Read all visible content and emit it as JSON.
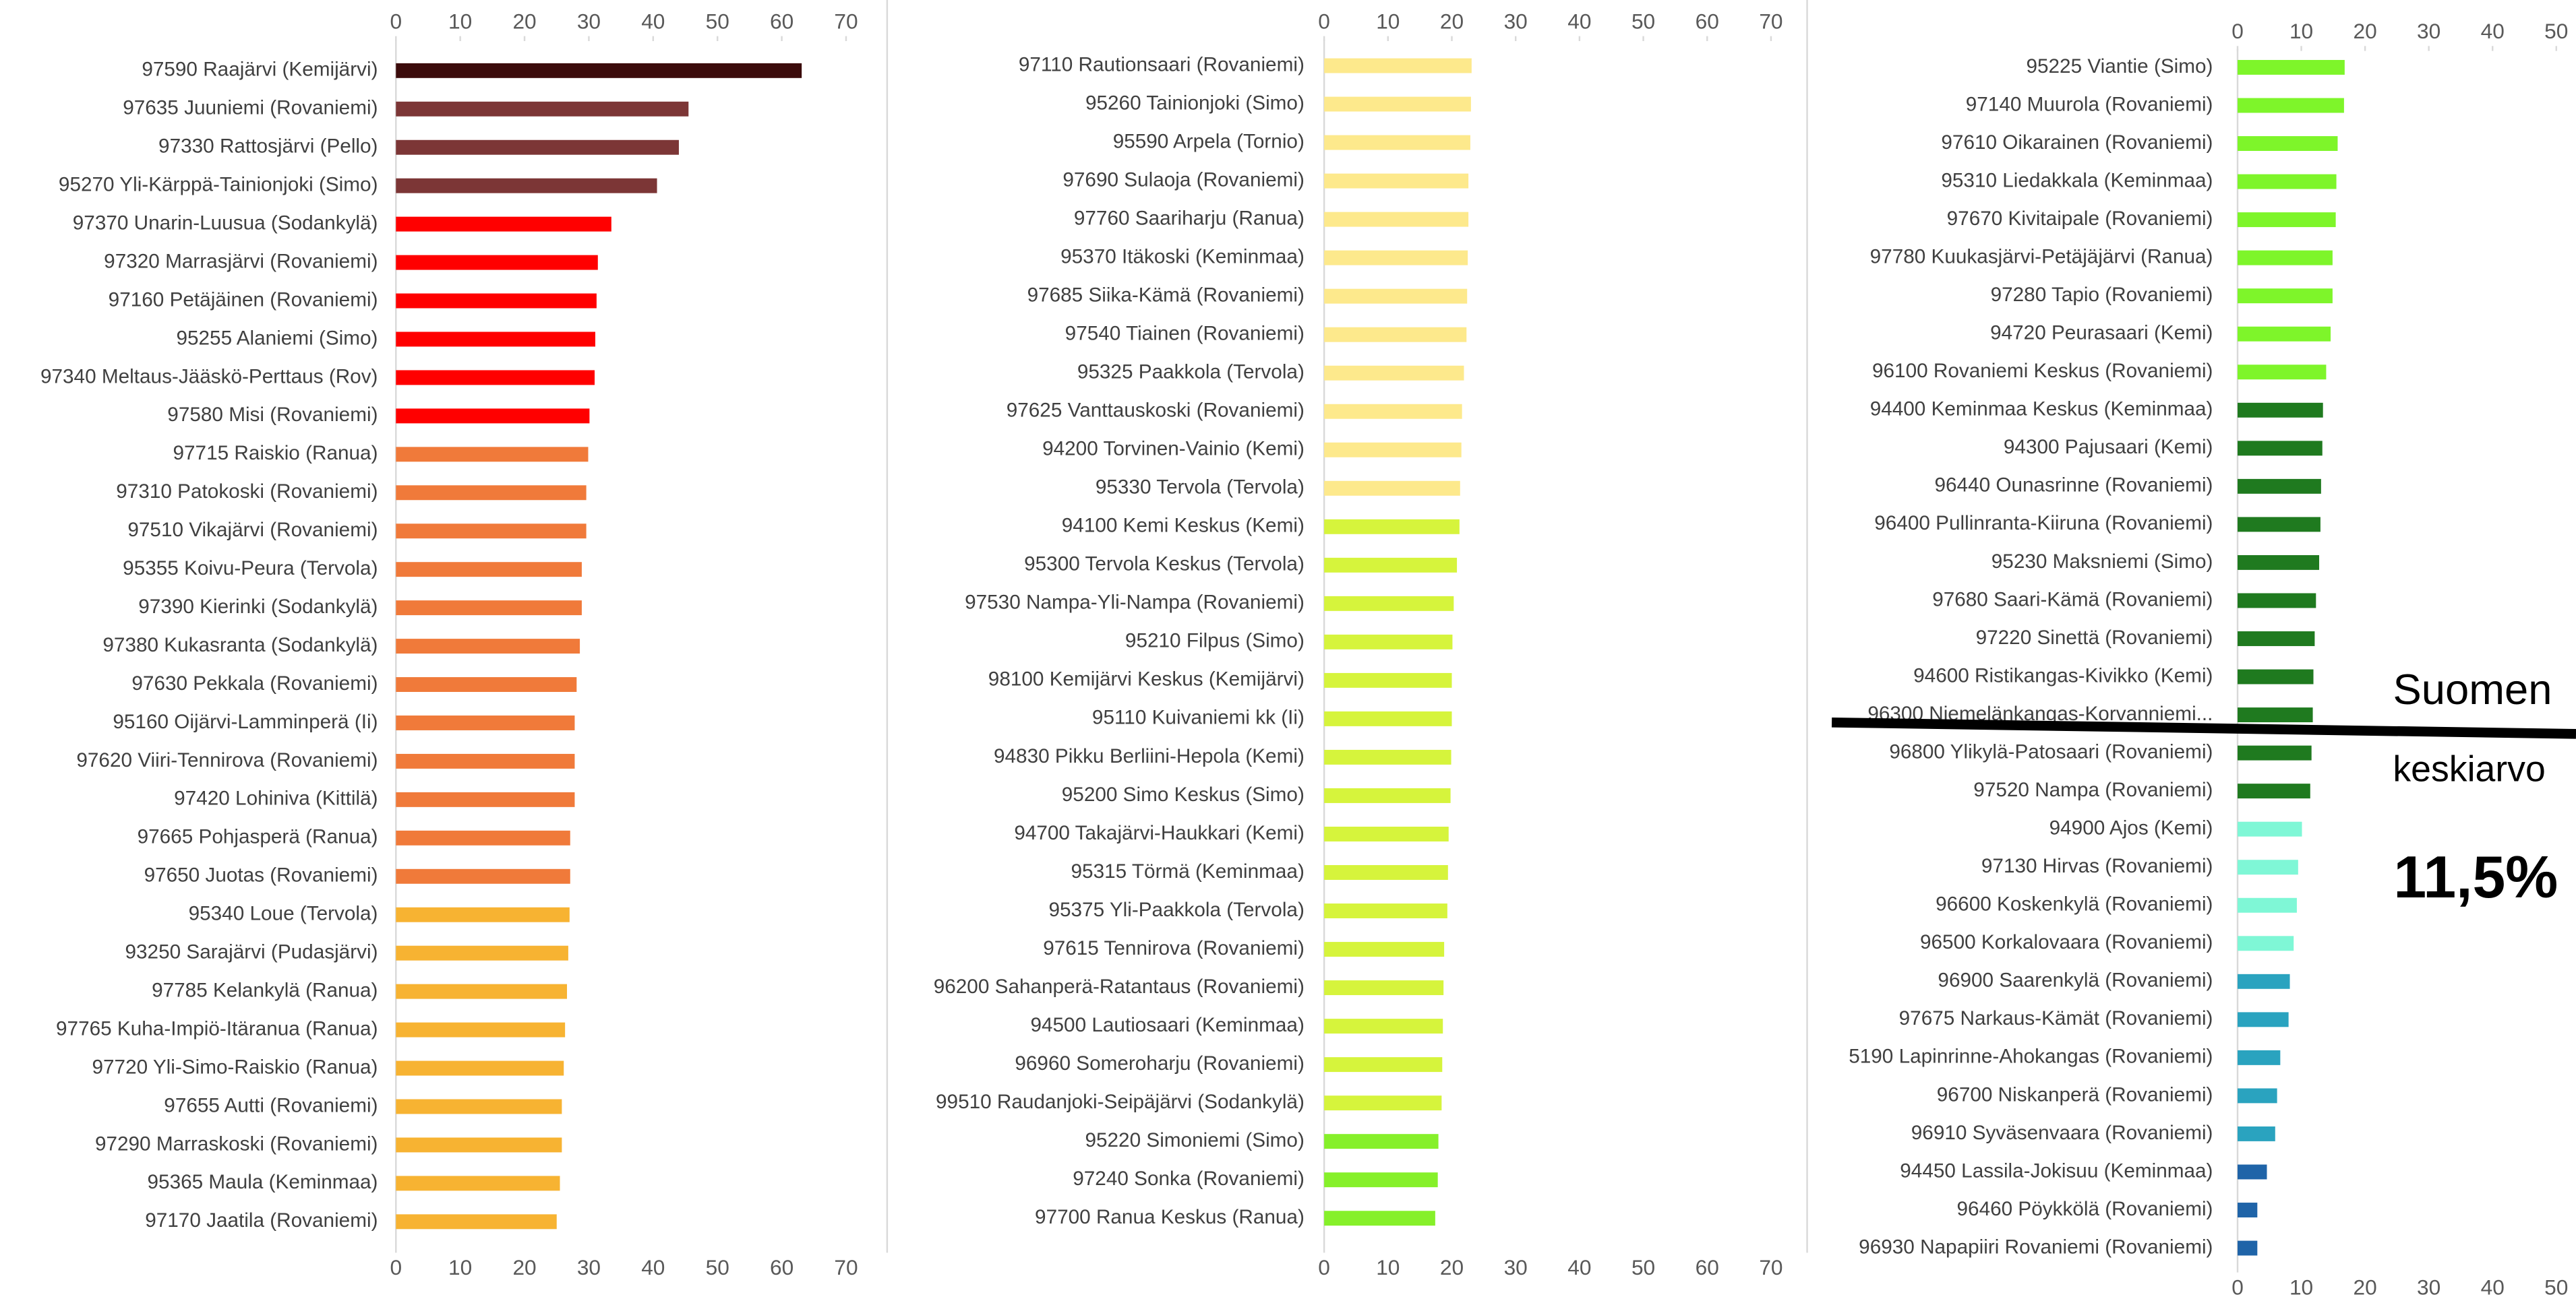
{
  "chart_data": [
    {
      "type": "bar",
      "orientation": "horizontal",
      "xlim": [
        0,
        70
      ],
      "xticks": [
        0,
        10,
        20,
        30,
        40,
        50,
        60,
        70
      ],
      "categories": [
        "97590 Raajärvi (Kemijärvi)",
        "97635 Juuniemi (Rovaniemi)",
        "97330 Rattosjärvi (Pello)",
        "95270 Yli-Kärppä-Tainionjoki (Simo)",
        "97370 Unarin-Luusua (Sodankylä)",
        "97320 Marrasjärvi (Rovaniemi)",
        "97160 Petäjäinen (Rovaniemi)",
        "95255 Alaniemi (Simo)",
        "97340 Meltaus-Jääskö-Perttaus (Rov)",
        "97580 Misi (Rovaniemi)",
        "97715 Raiskio (Ranua)",
        "97310 Patokoski (Rovaniemi)",
        "97510 Vikajärvi (Rovaniemi)",
        "95355 Koivu-Peura (Tervola)",
        "97390 Kierinki (Sodankylä)",
        "97380 Kukasranta (Sodankylä)",
        "97630 Pekkala (Rovaniemi)",
        "95160 Oijärvi-Lamminperä (Ii)",
        "97620 Viiri-Tennirova (Rovaniemi)",
        "97420 Lohiniva (Kittilä)",
        "97665 Pohjasperä (Ranua)",
        "97650 Juotas (Rovaniemi)",
        "95340 Loue (Tervola)",
        "93250 Sarajärvi (Pudasjärvi)",
        "97785 Kelankylä (Ranua)",
        "97765 Kuha-Impiö-Itäranua (Ranua)",
        "97720 Yli-Simo-Raiskio (Ranua)",
        "97655 Autti (Rovaniemi)",
        "97290 Marraskoski (Rovaniemi)",
        "95365 Maula (Keminmaa)",
        "97170 Jaatila (Rovaniemi)"
      ],
      "values": [
        63.1,
        45.5,
        44,
        40.6,
        33.5,
        31.4,
        31.2,
        31,
        30.9,
        30.1,
        29.9,
        29.6,
        29.6,
        28.9,
        28.9,
        28.6,
        28.1,
        27.8,
        27.8,
        27.8,
        27.1,
        27.1,
        27,
        26.8,
        26.6,
        26.3,
        26.1,
        25.8,
        25.8,
        25.5,
        25
      ],
      "colors": [
        "#3b0b0b",
        "#7c3636",
        "#7c3636",
        "#7c3636",
        "#ff0000",
        "#ff0000",
        "#ff0000",
        "#ff0000",
        "#ff0000",
        "#ff0000",
        "#f07a3a",
        "#f07a3a",
        "#f07a3a",
        "#f07a3a",
        "#f07a3a",
        "#f07a3a",
        "#f07a3a",
        "#f07a3a",
        "#f07a3a",
        "#f07a3a",
        "#f07a3a",
        "#f07a3a",
        "#f7b332",
        "#f7b332",
        "#f7b332",
        "#f7b332",
        "#f7b332",
        "#f7b332",
        "#f7b332",
        "#f7b332",
        "#f7b332"
      ]
    },
    {
      "type": "bar",
      "orientation": "horizontal",
      "xlim": [
        0,
        70
      ],
      "xticks": [
        0,
        10,
        20,
        30,
        40,
        50,
        60,
        70
      ],
      "categories": [
        "97110 Rautionsaari (Rovaniemi)",
        "95260 Tainionjoki (Simo)",
        "95590 Arpela (Tornio)",
        "97690 Sulaoja (Rovaniemi)",
        "97760 Saariharju (Ranua)",
        "95370 Itäkoski (Keminmaa)",
        "97685 Siika-Kämä (Rovaniemi)",
        "97540 Tiainen (Rovaniemi)",
        "95325 Paakkola (Tervola)",
        "97625 Vanttauskoski (Rovaniemi)",
        "94200 Torvinen-Vainio (Kemi)",
        "95330 Tervola (Tervola)",
        "94100 Kemi Keskus (Kemi)",
        "95300 Tervola Keskus (Tervola)",
        "97530 Nampa-Yli-Nampa (Rovaniemi)",
        "95210 Filpus (Simo)",
        "98100 Kemijärvi Keskus (Kemijärvi)",
        "95110 Kuivaniemi kk (Ii)",
        "94830 Pikku Berliini-Hepola (Kemi)",
        "95200 Simo Keskus (Simo)",
        "94700 Takajärvi-Haukkari (Kemi)",
        "95315 Törmä (Keminmaa)",
        "95375 Yli-Paakkola (Tervola)",
        "97615 Tennirova (Rovaniemi)",
        "96200 Sahanperä-Ratantaus (Rovaniemi)",
        "94500 Lautiosaari (Keminmaa)",
        "96960 Someroharju (Rovaniemi)",
        "99510 Raudanjoki-Seipäjärvi (Sodankylä)",
        "95220 Simoniemi (Simo)",
        "97240 Sonka (Rovaniemi)",
        "97700 Ranua Keskus (Ranua)"
      ],
      "values": [
        23.1,
        23,
        22.9,
        22.6,
        22.6,
        22.5,
        22.4,
        22.3,
        21.9,
        21.6,
        21.5,
        21.3,
        21.2,
        20.8,
        20.3,
        20.1,
        20,
        20,
        19.9,
        19.8,
        19.5,
        19.4,
        19.3,
        18.8,
        18.7,
        18.6,
        18.5,
        18.4,
        17.9,
        17.8,
        17.4
      ],
      "colors": [
        "#fde98c",
        "#fde98c",
        "#fde98c",
        "#fde98c",
        "#fde98c",
        "#fde98c",
        "#fde98c",
        "#fde98c",
        "#fde98c",
        "#fde98c",
        "#fde98c",
        "#fde98c",
        "#d6f43c",
        "#d6f43c",
        "#d6f43c",
        "#d6f43c",
        "#d6f43c",
        "#d6f43c",
        "#d6f43c",
        "#d6f43c",
        "#d6f43c",
        "#d6f43c",
        "#d6f43c",
        "#d6f43c",
        "#d6f43c",
        "#d6f43c",
        "#d6f43c",
        "#d6f43c",
        "#86f02a",
        "#86f02a",
        "#86f02a"
      ]
    },
    {
      "type": "bar",
      "orientation": "horizontal",
      "xlim": [
        0,
        50
      ],
      "xticks": [
        0,
        10,
        20,
        30,
        40,
        50
      ],
      "categories": [
        "95225 Viantie (Simo)",
        "97140 Muurola (Rovaniemi)",
        "97610 Oikarainen (Rovaniemi)",
        "95310 Liedakkala (Keminmaa)",
        "97670 Kivitaipale (Rovaniemi)",
        "97780 Kuukasjärvi-Petäjäjärvi (Ranua)",
        "97280 Tapio (Rovaniemi)",
        "94720 Peurasaari (Kemi)",
        "96100 Rovaniemi Keskus (Rovaniemi)",
        "94400 Keminmaa Keskus (Keminmaa)",
        "94300 Pajusaari (Kemi)",
        "96440 Ounasrinne (Rovaniemi)",
        "96400 Pullinranta-Kiiruna (Rovaniemi)",
        "95230 Maksniemi (Simo)",
        "97680 Saari-Kämä (Rovaniemi)",
        "97220 Sinettä (Rovaniemi)",
        "94600 Ristikangas-Kivikko (Kemi)",
        "96300 Niemelänkangas-Korvanniemi...",
        "96800 Ylikylä-Patosaari (Rovaniemi)",
        "97520 Nampa (Rovaniemi)",
        "94900 Ajos (Kemi)",
        "97130 Hirvas (Rovaniemi)",
        "96600 Koskenkylä (Rovaniemi)",
        "96500 Korkalovaara (Rovaniemi)",
        "96900 Saarenkylä (Rovaniemi)",
        "97675 Narkaus-Kämät (Rovaniemi)",
        "5190 Lapinrinne-Ahokangas (Rovaniemi)",
        "96700 Niskanperä (Rovaniemi)",
        "96910 Syväsenvaara (Rovaniemi)",
        "94450 Lassila-Jokisuu (Keminmaa)",
        "96460 Pöykkölä (Rovaniemi)",
        "96930 Napapiiri Rovaniemi (Rovaniemi)"
      ],
      "values": [
        16.8,
        16.7,
        15.7,
        15.5,
        15.4,
        14.9,
        14.9,
        14.6,
        13.9,
        13.4,
        13.3,
        13.1,
        13,
        12.8,
        12.3,
        12.1,
        11.9,
        11.8,
        11.6,
        11.4,
        10.1,
        9.5,
        9.3,
        8.8,
        8.2,
        8,
        6.7,
        6.2,
        5.9,
        4.6,
        3.1,
        3.1
      ],
      "colors": [
        "#7ef52a",
        "#7ef52a",
        "#7ef52a",
        "#7ef52a",
        "#7ef52a",
        "#7ef52a",
        "#7ef52a",
        "#7ef52a",
        "#7ef52a",
        "#1f7a1f",
        "#1f7a1f",
        "#1f7a1f",
        "#1f7a1f",
        "#1f7a1f",
        "#1f7a1f",
        "#1f7a1f",
        "#1f7a1f",
        "#1f7a1f",
        "#1f7a1f",
        "#1f7a1f",
        "#7ff7d6",
        "#7ff7d6",
        "#7ff7d6",
        "#7ff7d6",
        "#2aa3bf",
        "#2aa3bf",
        "#2aa3bf",
        "#2aa3bf",
        "#2aa3bf",
        "#1f64a8",
        "#1f64a8",
        "#1f64a8"
      ],
      "annotations": [
        "Suomen",
        "keskiarvo",
        "11,5%"
      ]
    }
  ]
}
